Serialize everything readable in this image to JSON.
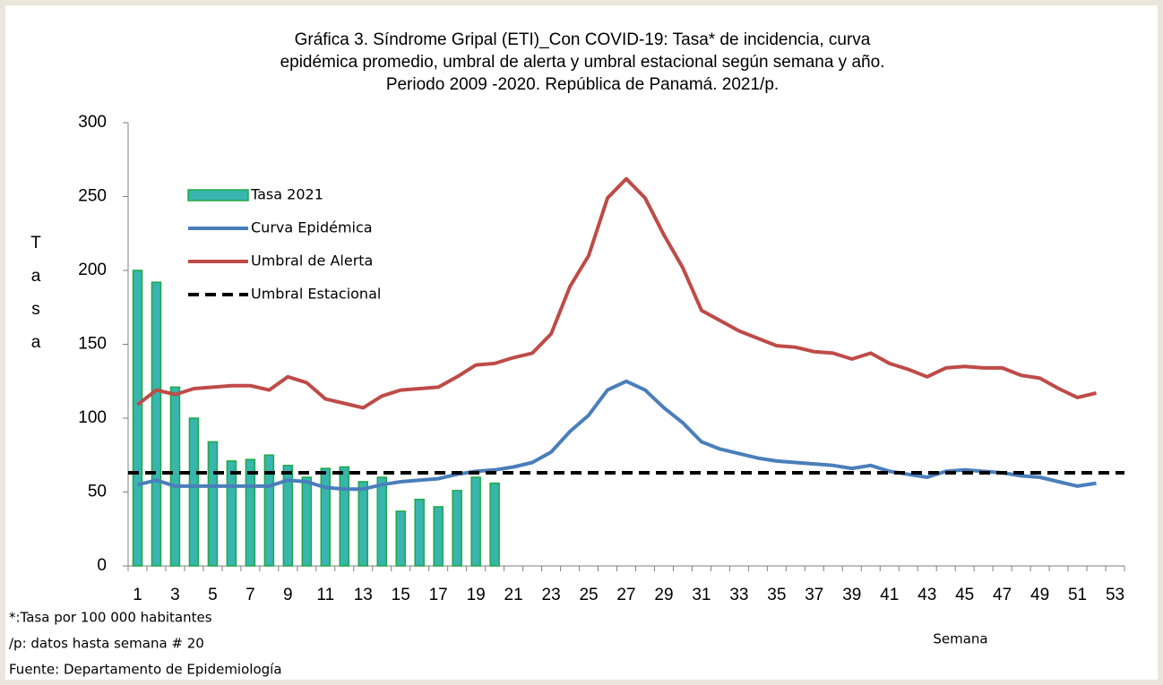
{
  "chart_data": {
    "type": "bar-line",
    "title": [
      "Gráfica 3. Síndrome Gripal (ETI)_Con COVID-19: Tasa* de incidencia, curva",
      "epidémica promedio, umbral de alerta y umbral estacional según semana y año.",
      "Periodo 2009 -2020.  República de Panamá. 2021/p."
    ],
    "y_label": "Tasa",
    "x_label": "Semana",
    "categories": [
      1,
      null,
      3,
      null,
      5,
      null,
      7,
      null,
      9,
      null,
      11,
      null,
      13,
      null,
      15,
      null,
      17,
      null,
      19,
      null,
      21,
      null,
      23,
      null,
      25,
      null,
      27,
      null,
      29,
      null,
      31,
      null,
      33,
      null,
      35,
      null,
      37,
      null,
      39,
      null,
      41,
      null,
      43,
      null,
      45,
      null,
      47,
      null,
      49,
      null,
      51,
      null,
      53
    ],
    "ylim": [
      0,
      300
    ],
    "yticks": [
      0,
      50,
      100,
      150,
      200,
      250,
      300
    ],
    "series": [
      {
        "name": "Tasa 2021",
        "type": "bar",
        "color": "#38b5ae",
        "stroke": "#1ea845",
        "values": [
          200,
          192,
          121,
          100,
          84,
          71,
          72,
          75,
          68,
          60,
          66,
          67,
          57,
          60,
          37,
          45,
          40,
          51,
          60,
          56,
          null,
          null,
          null,
          null,
          null,
          null,
          null,
          null,
          null,
          null,
          null,
          null,
          null,
          null,
          null,
          null,
          null,
          null,
          null,
          null,
          null,
          null,
          null,
          null,
          null,
          null,
          null,
          null,
          null,
          null,
          null,
          null,
          null
        ]
      },
      {
        "name": "Curva Epidémica",
        "type": "line",
        "color": "#4a7ebb",
        "values": [
          55,
          58,
          54,
          54,
          54,
          54,
          54,
          54,
          58,
          57,
          53,
          52,
          52,
          55,
          57,
          58,
          59,
          62,
          64,
          65,
          67,
          70,
          77,
          91,
          102,
          119,
          125,
          119,
          107,
          97,
          84,
          79,
          76,
          73,
          71,
          70,
          69,
          68,
          66,
          68,
          64,
          62,
          60,
          64,
          65,
          64,
          63,
          61,
          60,
          57,
          54,
          56,
          null
        ]
      },
      {
        "name": "Umbral de Alerta",
        "type": "line",
        "color": "#be4b48",
        "values": [
          109,
          119,
          116,
          120,
          121,
          122,
          122,
          119,
          128,
          124,
          113,
          110,
          107,
          115,
          119,
          120,
          121,
          128,
          136,
          137,
          141,
          144,
          157,
          189,
          210,
          249,
          262,
          249,
          224,
          202,
          173,
          166,
          159,
          154,
          149,
          148,
          145,
          144,
          140,
          144,
          137,
          133,
          128,
          134,
          135,
          134,
          134,
          129,
          127,
          120,
          114,
          117,
          null
        ]
      },
      {
        "name": "Umbral Estacional",
        "type": "hline",
        "color": "#000000",
        "dashed": true,
        "value": 63
      }
    ],
    "notes": [
      "*:Tasa por 100 000 habitantes",
      "/p: datos hasta semana # 20",
      "Fuente: Departamento de Epidemiología"
    ]
  }
}
